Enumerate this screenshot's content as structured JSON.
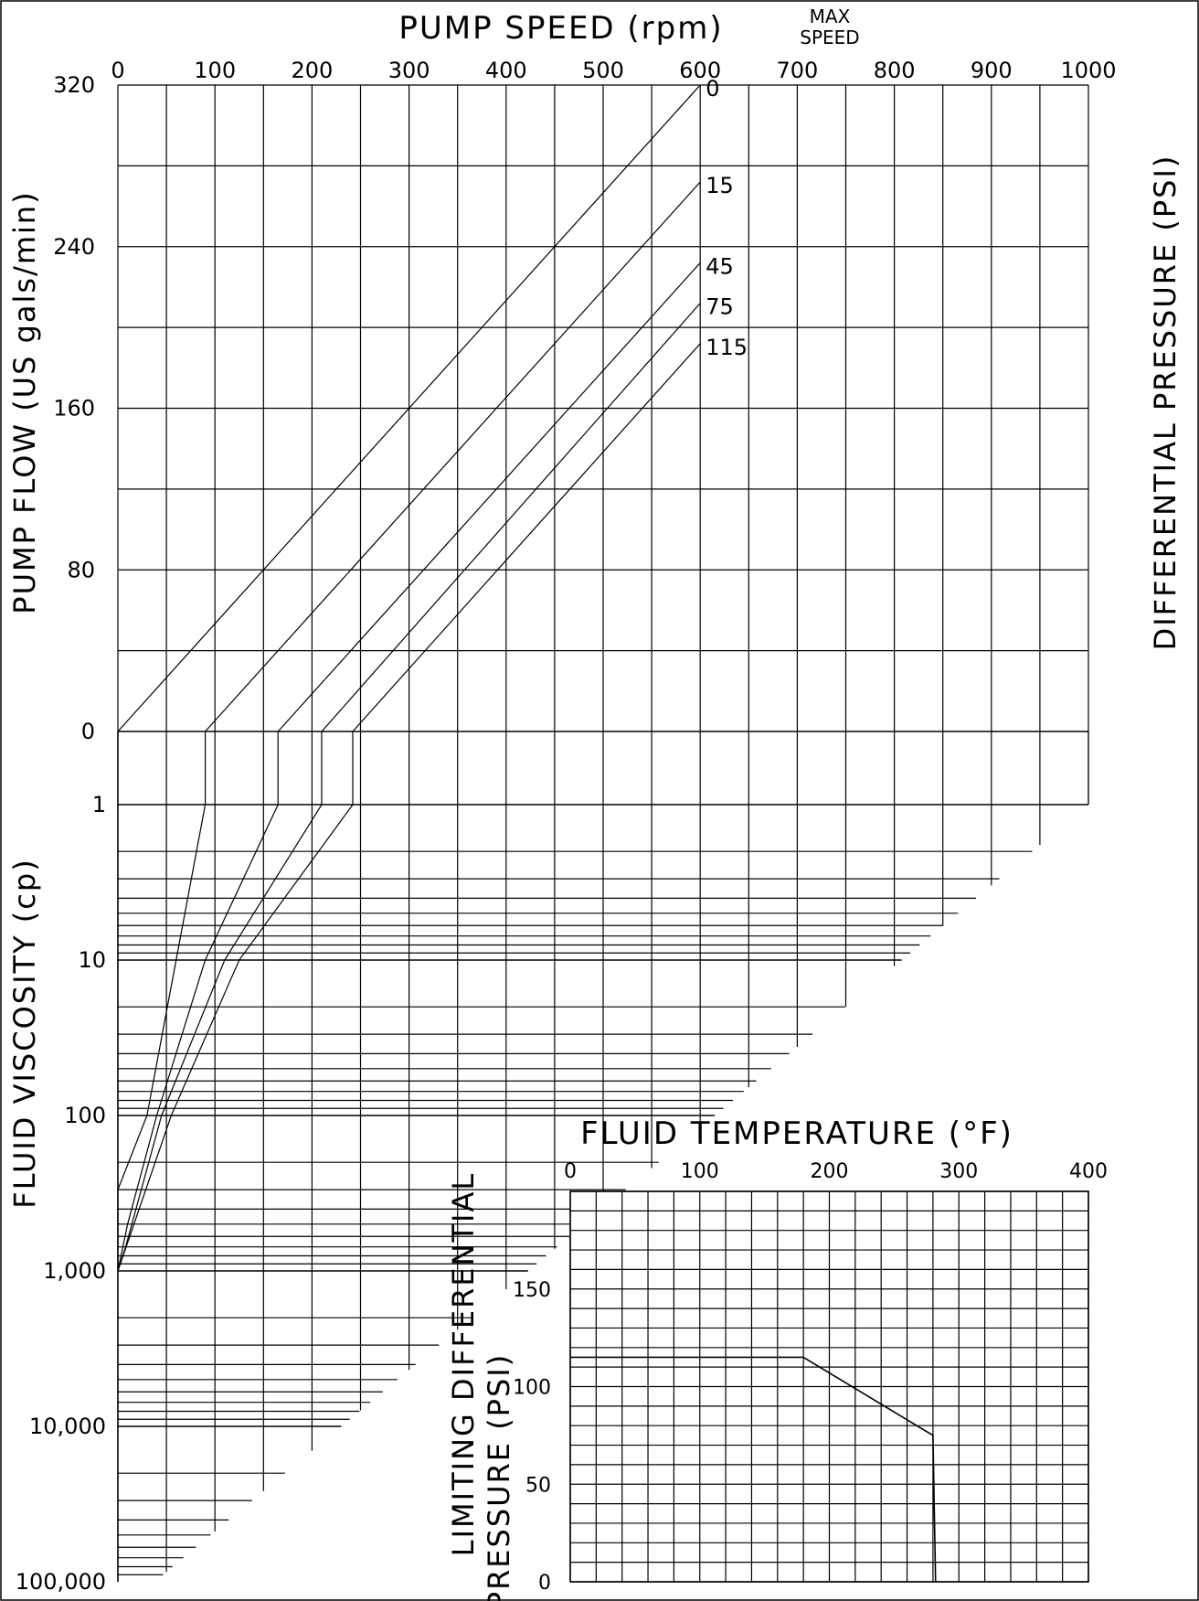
{
  "chart_data": [
    {
      "type": "line",
      "title": "PUMP SPEED (rpm)",
      "max_speed_label": [
        "MAX",
        "SPEED"
      ],
      "xlabel": "PUMP SPEED (rpm)",
      "ylabel": "PUMP FLOW (US gals/min)",
      "right_label": "DIFFERENTIAL PRESSURE (PSI)",
      "x_ticks": [
        "0",
        "100",
        "200",
        "300",
        "400",
        "500",
        "600",
        "700",
        "800",
        "900",
        "1000"
      ],
      "y_ticks": [
        "320",
        "240",
        "160",
        "80",
        "0"
      ],
      "xlim": [
        0,
        1000
      ],
      "ylim": [
        0,
        320
      ],
      "grid": true,
      "max_speed": 600,
      "series": [
        {
          "name": "0",
          "x": [
            0,
            600
          ],
          "y": [
            0,
            320
          ]
        },
        {
          "name": "15",
          "x": [
            90,
            600
          ],
          "y": [
            0,
            272
          ]
        },
        {
          "name": "45",
          "x": [
            165,
            600
          ],
          "y": [
            0,
            232
          ]
        },
        {
          "name": "75",
          "x": [
            210,
            600
          ],
          "y": [
            0,
            212
          ]
        },
        {
          "name": "115",
          "x": [
            242,
            600
          ],
          "y": [
            0,
            192
          ]
        }
      ]
    },
    {
      "type": "line",
      "title": "",
      "ylabel": "FLUID VISCOSITY (cp)",
      "y_scale": "log",
      "y_ticks": [
        "1",
        "10",
        "100",
        "1,000",
        "10,000",
        "100,000"
      ],
      "ylim": [
        1,
        100000
      ],
      "note": "Curves continue the differential-pressure lines: x = rpm at zero flow for each viscosity",
      "series": [
        {
          "name": "15",
          "viscosity": [
            1,
            10,
            100,
            300,
            1000
          ],
          "speed": [
            90,
            60,
            30,
            0,
            0
          ]
        },
        {
          "name": "45",
          "viscosity": [
            1,
            10,
            100,
            500,
            1000
          ],
          "speed": [
            165,
            90,
            40,
            10,
            0
          ]
        },
        {
          "name": "75",
          "viscosity": [
            1,
            10,
            100,
            700,
            1000
          ],
          "speed": [
            210,
            110,
            45,
            8,
            0
          ]
        },
        {
          "name": "115",
          "viscosity": [
            1,
            10,
            100,
            1000
          ],
          "speed": [
            242,
            125,
            55,
            0
          ]
        }
      ]
    },
    {
      "type": "line",
      "title": "FLUID TEMPERATURE (°F)",
      "xlabel": "FLUID TEMPERATURE (°F)",
      "ylabel": "LIMITING DIFFERENTIAL PRESSURE (PSI)",
      "ylabel_lines": [
        "LIMITING DIFFERENTIAL",
        "PRESSURE (PSI)"
      ],
      "x_ticks": [
        "0",
        "100",
        "200",
        "300",
        "400"
      ],
      "y_ticks": [
        "150",
        "100",
        "50",
        "0"
      ],
      "xlim": [
        0,
        400
      ],
      "ylim": [
        0,
        200
      ],
      "grid": true,
      "series": [
        {
          "name": "",
          "x": [
            0,
            180,
            280,
            282
          ],
          "y": [
            115,
            115,
            75,
            0
          ]
        }
      ]
    }
  ]
}
